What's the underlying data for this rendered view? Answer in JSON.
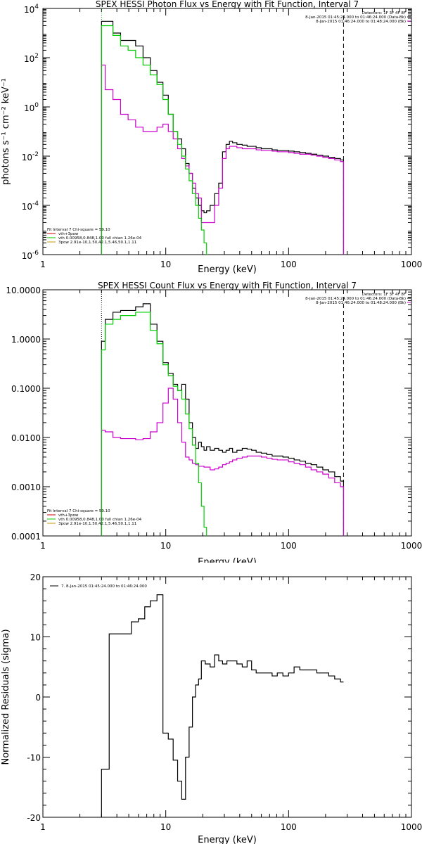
{
  "chart_data": [
    {
      "id": "photon",
      "type": "line",
      "title": "SPEX HESSI Photon Flux vs Energy with Fit Function, Interval 7",
      "xlabel": "Energy (keV)",
      "ylabel": "photons s⁻¹ cm⁻² keV⁻¹",
      "xscale": "log",
      "yscale": "log",
      "xlim": [
        1,
        1000
      ],
      "ylim": [
        1e-06,
        10000.0
      ],
      "xticks": [
        1,
        10,
        100,
        1000
      ],
      "xticklabels": [
        "1",
        "10",
        "100",
        "1000"
      ],
      "yticks": [
        1e-06,
        0.0001,
        0.01,
        1,
        100.0,
        10000.0
      ],
      "yticklabels": [
        [
          "10",
          "-6"
        ],
        [
          "10",
          "-4"
        ],
        [
          "10",
          "-2"
        ],
        [
          "10",
          "0"
        ],
        [
          "10",
          "2"
        ],
        [
          "10",
          "4"
        ]
      ],
      "vlines": [
        {
          "x": 3,
          "style": "dotted",
          "color": "#00b000"
        },
        {
          "x": 280,
          "style": "dashed",
          "color": "#000000"
        }
      ],
      "legend_header": [
        "Detectors: 1F 3F 4F 8F",
        "8-Jan-2015 01:45:24.000 to 01:46:24.000 (Data-Bk)",
        "8-Jan-2015 01:46:24.000 to 01:48:24.000 (Bk)"
      ],
      "legend_header_colors": [
        "",
        "#000000",
        "#cc00cc"
      ],
      "legend_fit": [
        "Fit Interval  7     Chi-square = 59.10",
        "vth+3pow",
        "vth 0.00958,0.848,1.00  full chian 1.26e-04",
        "3pow 2.91e-10,1.50,42.1,5.46,50.1,1.11"
      ],
      "legend_fit_colors": [
        "",
        "#cc0000",
        "#00cc00",
        "#cc9900"
      ],
      "series": [
        {
          "name": "Data-Bk",
          "color": "#000000",
          "x": [
            3,
            3.45,
            4,
            4.6,
            5.3,
            6.1,
            7,
            8,
            9,
            10,
            11,
            12,
            13,
            14,
            15,
            16,
            17,
            18,
            19,
            20,
            21,
            22,
            24,
            26,
            28,
            30,
            32,
            34,
            36,
            40,
            44,
            48,
            52,
            57,
            63,
            70,
            77,
            85,
            95,
            105,
            117,
            130,
            145,
            160,
            180,
            200,
            225,
            250,
            280
          ],
          "y": [
            3000,
            3000,
            1000,
            500,
            500,
            300,
            100,
            30,
            10,
            3,
            0.5,
            0.1,
            0.05,
            0.02,
            0.005,
            0.002,
            0.0005,
            0.0002,
            0.0001,
            6e-05,
            5e-05,
            6e-05,
            0.0001,
            0.0003,
            0.0008,
            0.015,
            0.03,
            0.04,
            0.035,
            0.03,
            0.028,
            0.025,
            0.025,
            0.022,
            0.02,
            0.02,
            0.018,
            0.017,
            0.017,
            0.016,
            0.015,
            0.014,
            0.013,
            0.012,
            0.011,
            0.01,
            0.009,
            0.008,
            0.007
          ]
        },
        {
          "name": "Bk",
          "color": "#cc00cc",
          "x": [
            3,
            3.45,
            4,
            4.6,
            5.3,
            6.1,
            7,
            8,
            9,
            10,
            11,
            12,
            13,
            14,
            15,
            16,
            17,
            18,
            19,
            20,
            21,
            22,
            24,
            26,
            28,
            30,
            32,
            34,
            36,
            40,
            44,
            48,
            52,
            57,
            63,
            70,
            77,
            85,
            95,
            105,
            117,
            130,
            145,
            160,
            180,
            200,
            225,
            250,
            280
          ],
          "y": [
            50,
            5,
            2,
            0.5,
            0.3,
            0.15,
            0.1,
            0.1,
            0.15,
            0.2,
            0.1,
            0.05,
            0.02,
            0.008,
            0.004,
            0.002,
            0.0008,
            0.0003,
            0.0002,
            2e-05,
            2e-05,
            2e-05,
            2e-05,
            0.0001,
            0.0005,
            0.008,
            0.02,
            0.025,
            0.025,
            0.022,
            0.02,
            0.02,
            0.02,
            0.018,
            0.017,
            0.017,
            0.016,
            0.015,
            0.015,
            0.014,
            0.013,
            0.012,
            0.012,
            0.011,
            0.01,
            0.009,
            0.008,
            0.007,
            0.006
          ]
        },
        {
          "name": "vth 0.00958,0.848,1.00  full chian 1.26e-04",
          "color": "#00cc00",
          "x": [
            3,
            3.45,
            4,
            4.6,
            5.3,
            6.1,
            7,
            8,
            9,
            10,
            11,
            12,
            13,
            14,
            15,
            16,
            17,
            18,
            19,
            20,
            21,
            22
          ],
          "y": [
            2000,
            2000,
            800,
            300,
            200,
            100,
            50,
            20,
            8,
            2,
            0.5,
            0.1,
            0.03,
            0.01,
            0.003,
            0.001,
            0.0003,
            0.0001,
            3e-05,
            1e-05,
            3e-06,
            1e-06
          ]
        }
      ]
    },
    {
      "id": "count",
      "type": "line",
      "title": "SPEX HESSI Count Flux vs Energy with Fit Function, Interval 7",
      "xlabel": "Energy (keV)",
      "ylabel": "",
      "xscale": "log",
      "yscale": "log",
      "xlim": [
        1,
        1000
      ],
      "ylim": [
        0.0001,
        10
      ],
      "xticks": [
        1,
        10,
        100,
        1000
      ],
      "xticklabels": [
        "1",
        "10",
        "100",
        "1000"
      ],
      "yticks": [
        0.0001,
        0.001,
        0.01,
        0.1,
        1,
        10
      ],
      "yticklabels": [
        "0.0001",
        "0.0010",
        "0.0100",
        "0.1000",
        "1.0000",
        "10.0000"
      ],
      "vlines": [
        {
          "x": 3,
          "style": "dotted",
          "color": "#000000"
        },
        {
          "x": 280,
          "style": "dashed",
          "color": "#000000"
        }
      ],
      "legend_header": [
        "Detectors: 1F 3F 4F 8F",
        "8-Jan-2015 01:45:24.000 to 01:46:24.000 (Data-Bk)",
        "8-Jan-2015 01:46:24.000 to 01:48:24.000 (Bk)"
      ],
      "legend_header_colors": [
        "",
        "#000000",
        "#cc00cc"
      ],
      "legend_fit": [
        "Fit Interval  7     Chi-square = 59.10",
        "vth+3pow",
        "vth 0.00958,0.848,1.00  full chian 1.26e-04",
        "3pow 2.91e-10,1.50,42.1,5.46,50.1,1.11"
      ],
      "legend_fit_colors": [
        "",
        "#cc0000",
        "#00cc00",
        "#cc9900"
      ],
      "series": [
        {
          "name": "Data-Bk",
          "color": "#000000",
          "x": [
            3,
            3.45,
            4,
            4.6,
            5.3,
            6.1,
            7,
            8,
            9,
            10,
            11,
            12,
            13,
            14,
            15,
            16,
            17,
            18,
            19,
            20,
            21,
            22,
            24,
            26,
            28,
            30,
            32,
            34,
            36,
            40,
            44,
            48,
            52,
            57,
            63,
            70,
            77,
            85,
            95,
            105,
            117,
            130,
            145,
            160,
            180,
            200,
            225,
            250,
            280
          ],
          "y": [
            0.9,
            2.5,
            3.5,
            3.8,
            3.8,
            4.5,
            5.2,
            2,
            0.9,
            0.33,
            0.2,
            0.12,
            0.09,
            0.12,
            0.06,
            0.02,
            0.01,
            0.006,
            0.008,
            0.0065,
            0.0055,
            0.0065,
            0.0055,
            0.006,
            0.0055,
            0.005,
            0.0055,
            0.006,
            0.005,
            0.0055,
            0.006,
            0.0058,
            0.0055,
            0.005,
            0.0048,
            0.0045,
            0.0042,
            0.0042,
            0.004,
            0.0038,
            0.0035,
            0.0033,
            0.003,
            0.0028,
            0.0025,
            0.0022,
            0.002,
            0.0016,
            0.0013
          ]
        },
        {
          "name": "Bk",
          "color": "#cc00cc",
          "x": [
            3,
            3.45,
            4,
            4.6,
            5.3,
            6.1,
            7,
            8,
            9,
            10,
            11,
            12,
            13,
            14,
            15,
            16,
            17,
            18,
            19,
            20,
            21,
            22,
            24,
            26,
            28,
            30,
            32,
            34,
            36,
            40,
            44,
            48,
            52,
            57,
            63,
            70,
            77,
            85,
            95,
            105,
            117,
            130,
            145,
            160,
            180,
            200,
            225,
            250,
            280
          ],
          "y": [
            0.014,
            0.013,
            0.01,
            0.0095,
            0.0095,
            0.009,
            0.0095,
            0.013,
            0.02,
            0.05,
            0.1,
            0.06,
            0.02,
            0.008,
            0.004,
            0.0035,
            0.003,
            0.0028,
            0.0026,
            0.0026,
            0.0025,
            0.0025,
            0.0022,
            0.0023,
            0.0025,
            0.0028,
            0.003,
            0.0032,
            0.0035,
            0.0038,
            0.004,
            0.0042,
            0.0042,
            0.0042,
            0.004,
            0.0038,
            0.0036,
            0.0035,
            0.0035,
            0.0032,
            0.003,
            0.0028,
            0.0025,
            0.0022,
            0.002,
            0.0018,
            0.0015,
            0.0012,
            0.001
          ]
        },
        {
          "name": "vth 0.00958,0.848,1.00  full chian 1.26e-04",
          "color": "#00cc00",
          "x": [
            3,
            3.45,
            4,
            4.6,
            5.3,
            6.1,
            7,
            8,
            9,
            10,
            11,
            12,
            13,
            14,
            15,
            16,
            17,
            18,
            19,
            20,
            21,
            22
          ],
          "y": [
            0.6,
            2,
            2.5,
            3,
            3,
            3.5,
            3.5,
            1.5,
            0.8,
            0.3,
            0.18,
            0.11,
            0.09,
            0.06,
            0.03,
            0.015,
            0.007,
            0.003,
            0.0012,
            0.0004,
            0.00015,
            8e-05
          ]
        }
      ]
    },
    {
      "id": "residuals",
      "type": "line",
      "title": "",
      "xlabel": "Energy (keV)",
      "ylabel": "Normalized Residuals (sigma)",
      "xscale": "log",
      "yscale": "linear",
      "xlim": [
        1,
        1000
      ],
      "ylim": [
        -20,
        20
      ],
      "xticks": [
        1,
        10,
        100,
        1000
      ],
      "xticklabels": [
        "1",
        "10",
        "100",
        "1000"
      ],
      "yticks": [
        -20,
        -10,
        0,
        10,
        20
      ],
      "yticklabels": [
        "-20",
        "-10",
        "0",
        "10",
        "20"
      ],
      "legend": "7.  8-Jan-2015 01:45:24.000 to 01:46:24.000",
      "series": [
        {
          "name": "7.  8-Jan-2015 01:45:24.000 to 01:46:24.000",
          "color": "#000000",
          "x": [
            3,
            4,
            5,
            5.5,
            6.5,
            7,
            8,
            9,
            10,
            11,
            12,
            13,
            14,
            15,
            16,
            17,
            18,
            19,
            20,
            22,
            24,
            26,
            28,
            30,
            33,
            36,
            40,
            44,
            48,
            52,
            57,
            63,
            70,
            77,
            85,
            95,
            105,
            117,
            130,
            145,
            160,
            180,
            200,
            225,
            250,
            280
          ],
          "y": [
            -12,
            10.5,
            10.5,
            12.5,
            13,
            15,
            16,
            17,
            -6,
            -7,
            -10.5,
            -14,
            -17,
            -10,
            -5,
            0,
            2,
            3,
            6,
            5.5,
            5,
            7,
            6,
            5.5,
            6,
            6,
            5.5,
            5,
            6,
            4.5,
            4,
            4,
            4,
            3.5,
            4,
            3.5,
            4,
            5,
            4.5,
            4.5,
            4.5,
            4,
            4,
            3.5,
            3,
            2.5
          ]
        }
      ]
    }
  ]
}
